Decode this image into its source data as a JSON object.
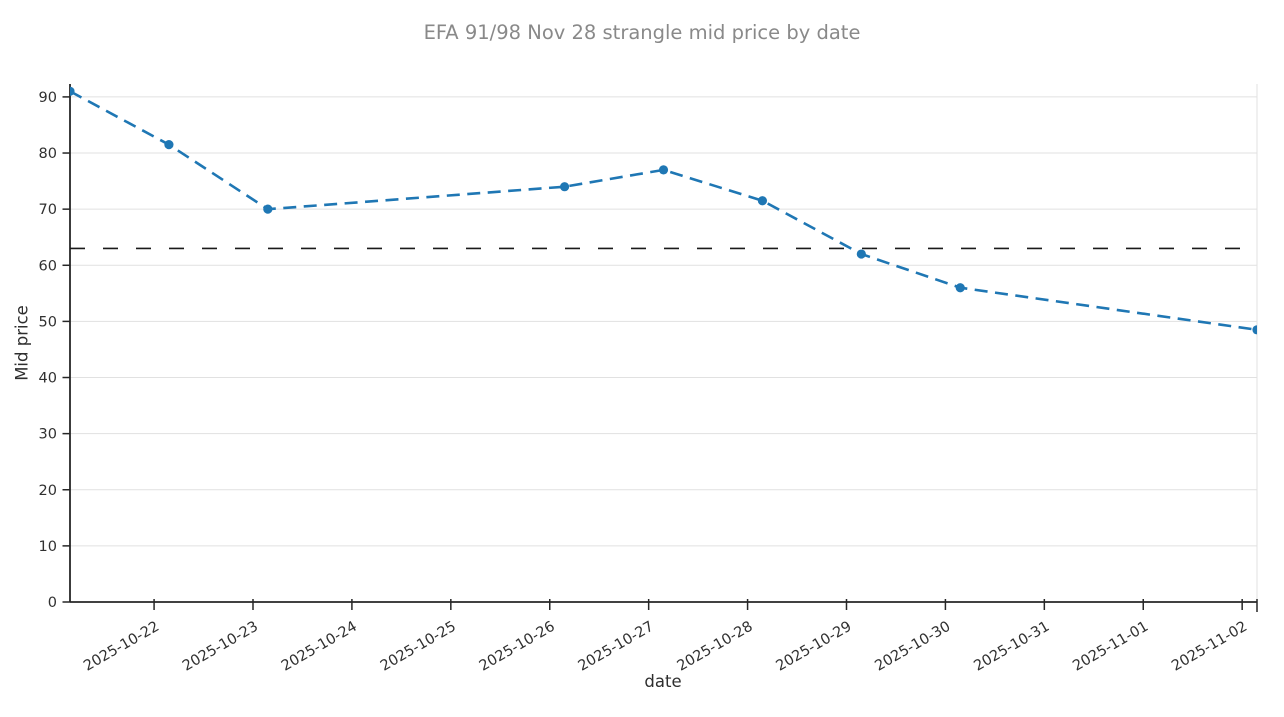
{
  "chart_data": {
    "type": "line",
    "title": "EFA 91/98 Nov 28 strangle mid price by date",
    "xlabel": "date",
    "ylabel": "Mid price",
    "series": [
      {
        "style": "dashed-line-with-circle-markers",
        "color": "#1f77b4",
        "points": [
          {
            "date": "2025-10-21",
            "value": 91
          },
          {
            "date": "2025-10-22",
            "value": 81.5
          },
          {
            "date": "2025-10-23",
            "value": 70
          },
          {
            "date": "2025-10-26",
            "value": 74
          },
          {
            "date": "2025-10-27",
            "value": 77
          },
          {
            "date": "2025-10-28",
            "value": 71.5
          },
          {
            "date": "2025-10-29",
            "value": 62
          },
          {
            "date": "2025-10-30",
            "value": 56
          },
          {
            "date": "2025-11-02",
            "value": 48.5
          }
        ]
      }
    ],
    "reference_line": {
      "value": 63,
      "style": "dashed",
      "color": "#1a1a1a"
    },
    "x_ticks": [
      "2025-10-22",
      "2025-10-23",
      "2025-10-24",
      "2025-10-25",
      "2025-10-26",
      "2025-10-27",
      "2025-10-28",
      "2025-10-29",
      "2025-10-30",
      "2025-10-31",
      "2025-11-01",
      "2025-11-02"
    ],
    "y_ticks": [
      0,
      10,
      20,
      30,
      40,
      50,
      60,
      70,
      80,
      90
    ],
    "ylim": [
      0,
      92.3
    ],
    "grid": "horizontal-only",
    "legend": "none",
    "colors": {
      "series": "#1f77b4",
      "reference": "#1a1a1a",
      "grid": "#e1e1e1",
      "spine": "#262626",
      "tick_label": "#303030",
      "title": "#898989"
    }
  }
}
